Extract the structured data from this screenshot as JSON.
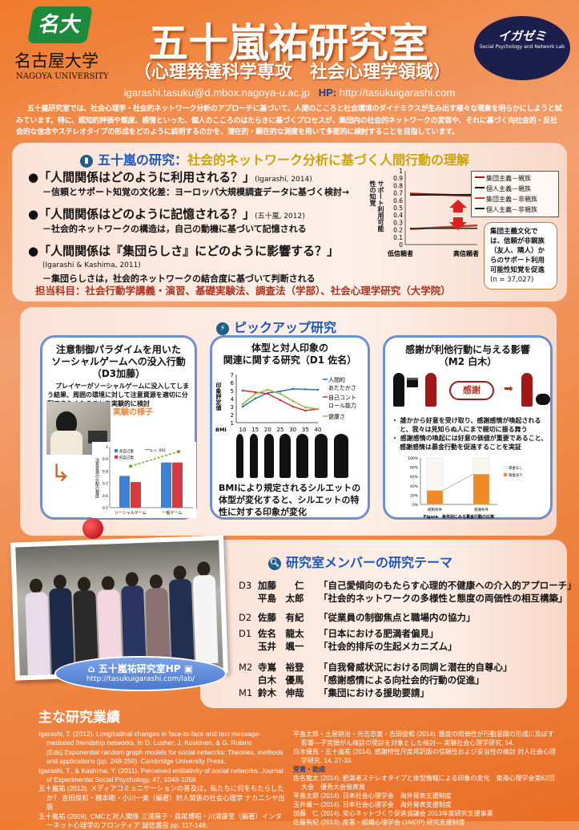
{
  "header": {
    "logo_text": "名大",
    "university": "名古屋大学",
    "university_en": "NAGOYA UNIVERSITY",
    "title": "五十嵐祐研究室",
    "subtitle": "（心理発達科学専攻　社会心理学領域）",
    "mascot_title": "イガゼミ",
    "mascot_sub": "Social Psychology and Network Lab",
    "email": "igarashi.tasuku@d.mbox.nagoya-u.ac.jp",
    "hp_label": "HP:",
    "hp_url": "http://tasukuigarashi.com"
  },
  "intro": "五十嵐研究室では、社会心理学・社会的ネットワーク分析のアプローチに基づいて、人間のこころと社会環境のダイナミクスが生み出す様々な現象を明らかにしようと試みています。特に、認知的評価や態度、感情といった、個人のこころのはたらきに基づくプロセスが、集団内の社会的ネットワークの変容や、それに基づく向社会的・反社会的な信念やステレオタイプの形成をどのように説明するのかを、潜在的・顕在的な測度を用いて多面的に検討することを目指しています。",
  "research": {
    "title_a": "五十嵐の研究：",
    "title_b": "社会的ネットワーク分析に基づく人間行動の理解",
    "items": [
      {
        "q": "●「人間関係はどのように利用される？」",
        "cite": "(Igarashi, 2014)",
        "sub": "－信頼とサポート知覚の文化差：ヨーロッパ大規模調査データに基づく検討→"
      },
      {
        "q": "●「人間関係はどのように記憶される？」",
        "cite": "(五十嵐, 2012)",
        "sub": "－社会的ネットワークの構造は，自己の動機に基づいて記憶される"
      },
      {
        "q": "●「人間関係は『集団らしさ』にどのように影響する？」",
        "cite": "(Igarashi & Kashima, 2011)",
        "sub": "－集団らしさは，社会的ネットワークの結合度に基づいて判断される"
      }
    ],
    "subjects": "担当科目：社会行動学講義・演習、基礎実験法、調査法（学部）、社会心理学研究（大学院）",
    "note": "集団主義文化では、信頼が非親族（友人、隣人）からのサポート利用可能性知覚を促進",
    "note_n": "(n = 37,027)",
    "chart": {
      "type": "line",
      "ylabel": "サポート利用可能性の知覚",
      "ylim": [
        0,
        1
      ],
      "yticks": [
        "0",
        "0.1",
        "0.2",
        "0.3",
        "0.4",
        "0.5",
        "0.6",
        "0.7",
        "0.8",
        "0.9",
        "1"
      ],
      "categories": [
        "低信頼者",
        "高信頼者"
      ],
      "series": [
        {
          "name": "集団主義－親族",
          "values": [
            0.69,
            0.66
          ],
          "color": "#9b1d14"
        },
        {
          "name": "個人主義－親族",
          "values": [
            0.67,
            0.68
          ],
          "color": "#111111"
        },
        {
          "name": "集団主義－非親族",
          "values": [
            0.21,
            0.26
          ],
          "color": "#c0392b"
        },
        {
          "name": "個人主義－非親族",
          "values": [
            0.22,
            0.22
          ],
          "color": "#222222"
        }
      ]
    }
  },
  "pickup": {
    "title": "ピックアップ研究",
    "card1": {
      "title": "注意制御パラダイムを用いた\nソーシャルゲームへの没入行動（D3加藤）",
      "desc": "プレイヤーがソーシャルゲームに没入してしまう結果、周囲の環境に対して注意資源を適切に分配できなくなることを実験的に検討",
      "photo_label": "実験の様子",
      "chart": {
        "type": "bar",
        "ylabel": "注意資源の分配の程度",
        "ylim": [
          0.5,
          1
        ],
        "yticks": [
          "0.5",
          "0.6",
          "0.7",
          "0.8",
          "0.9",
          "1"
        ],
        "categories": [
          "ソーシャルゲーム",
          "一般ゲーム"
        ],
        "series": [
          {
            "name": "高自己愛",
            "values": [
              0.76,
              0.87
            ],
            "color": "#3f7fd6"
          },
          {
            "name": "低自己愛",
            "values": [
              0.71,
              0.87
            ],
            "color": "#d6393f"
          }
        ],
        "trend": [
          0.84,
          0.96
        ],
        "annotation": "***p < .001"
      }
    },
    "card2": {
      "title": "体型と対人印象の\n関連に関する研究（D1 佐名）",
      "desc": "BMIにより規定されるシルエットの体型が変化すると、シルエットの特性に対する印象が変化",
      "chart": {
        "type": "line",
        "ylabel": "印象評定値",
        "xlabel": "BMI",
        "ylim": [
          1,
          7
        ],
        "x": [
          10,
          15,
          20,
          25,
          30,
          35,
          40
        ],
        "series": [
          {
            "name": "人間的あたたかさ",
            "values": [
              3.0,
              4.0,
              4.7,
              4.9,
              5.2,
              5.15,
              5.1
            ],
            "color": "#2f6fb8"
          },
          {
            "name": "自己コントロール能力",
            "values": [
              5.0,
              4.8,
              4.6,
              3.8,
              3.0,
              2.5,
              2.7
            ],
            "color": "#c8323a"
          },
          {
            "name": "健康さ",
            "values": [
              3.3,
              4.6,
              5.1,
              4.6,
              3.7,
              2.9,
              2.7
            ],
            "color": "#8fbf3a"
          }
        ]
      }
    },
    "card3": {
      "title": "感謝が利他行動に与える影響\n（M2 白木）",
      "cloud": "感謝",
      "bullets": [
        "誰かから好意を受け取り、感謝感情が喚起されると、我々は見知らぬ人にまで親切に振る舞う",
        "感謝感情の喚起には好意の価値が重要であること、感謝感情は募金行動を促進することを実証"
      ],
      "chart": {
        "type": "bar",
        "stacked": true,
        "ylim": [
          0,
          100
        ],
        "yticks": [
          "0%",
          "20%",
          "40%",
          "60%",
          "80%",
          "100%"
        ],
        "categories": [
          "統制条件",
          "感謝条件"
        ],
        "series": [
          {
            "name": "寄金なし",
            "values": [
              70,
              35
            ],
            "color": "#fbf6ee"
          },
          {
            "name": "寄金あり",
            "values": [
              30,
              65
            ],
            "color": "#ee8a2a"
          }
        ],
        "caption": "Figure　条件別にみる募金行動の比率"
      }
    }
  },
  "hp": {
    "label": "五十嵐祐研究室HP",
    "url": "http://tasukuigarashi.com/lab/"
  },
  "members": {
    "title": "研究室メンバーの研究テーマ",
    "rows": [
      {
        "deg": "D3",
        "name": "加藤　　仁",
        "theme": "「自己愛傾向のもたらす心理的不健康への介入的アプローチ」"
      },
      {
        "deg": "",
        "name": "平島　太郎",
        "theme": "「社会的ネットワークの多様性と態度の両価性の相互構築」"
      },
      {
        "deg": "D2",
        "name": "佐藤　有紀",
        "theme": "「従業員の制御焦点と職場内の協力」"
      },
      {
        "deg": "D1",
        "name": "佐名　龍太",
        "theme": "「日本における肥満者偏見」"
      },
      {
        "deg": "",
        "name": "玉井　颯一",
        "theme": "「社会的排斥の生起メカニズム」"
      },
      {
        "deg": "M2",
        "name": "寺嶌　裕登",
        "theme": "「自我脅威状況における同調と潜在的自尊心」"
      },
      {
        "deg": "",
        "name": "白木　優馬",
        "theme": "「感謝感情による向社会的行動の促進」"
      },
      {
        "deg": "M1",
        "name": "鈴木　伸哉",
        "theme": "「集団における援助要請」"
      }
    ]
  },
  "publications": {
    "title": "主な研究業績",
    "left": [
      "Igarashi, T. (2012). Longitudinal changes in face-to-face and text message-mediated friendship networks. In D. Lusher, J. Koskinen, & G. Robins (Eds).Exponential random graph models for social networks: Theories, methods and applications (pp. 248-259). Cambridge University Press.",
      "Igarashi, T., & Kashima, Y. (2011). Perceived entitativity of social networks. Journal of Experimental Social Psychology, 47, 1048-1058.",
      "五十嵐祐 (2012). メディアコミュニケーションの普及は，私たちに何をもたらしたか？ 吉田俊和・橋本剛・小川一美（編著）対人関係の社会心理学 ナカニシヤ出版",
      "五十嵐祐 (2009). CMCと対人関係 三浦麻子・森尾博昭・川浦康至（編著）インターネット心理学のフロンティア 誠信書房 pp. 117-148."
    ],
    "right": [
      "平島太郎・土屋耕治・元吉忠寛・吉田俊和 (2014). 態度の両価性が行動意図の形成に及ぼす影響―子宮頸がん検診の受診を対象とした検討― 実験社会心理学研究, 54.",
      "白木優馬・五十嵐祐 (2014). 感謝特性尺度邦訳版の信頼性および妥当性の検討 対人社会心理学研究, 14, 27-33."
    ],
    "awards_title": "受賞・助成",
    "awards": [
      "佐名龍太 (2014). 肥満者ステレオタイプと体型情報による印象の変化　東海心理学会第63回大会　優秀大会発表賞",
      "平島太郎 (2014). 日本社会心理学会　海外発表支援制度",
      "玉井颯一 (2014). 日本社会心理学会　海外発表支援制度",
      "加藤　仁 (2014). 安心ネットづくり促進協議会 2013年度研究支援事業",
      "佐藤有紀 (2013). 産業・組織心理学会 (JAIOP) 研究支援制度"
    ]
  }
}
